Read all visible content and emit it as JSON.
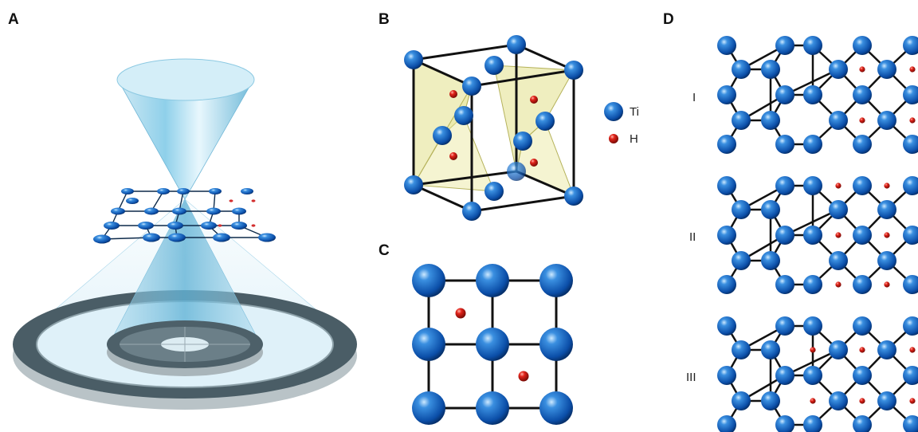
{
  "panels": {
    "a": {
      "label": "A"
    },
    "b": {
      "label": "B"
    },
    "c": {
      "label": "C"
    },
    "d": {
      "label": "D",
      "rows": [
        "I",
        "II",
        "III"
      ]
    }
  },
  "legend": [
    {
      "symbol": "Ti",
      "color": "#1565c0"
    },
    {
      "symbol": "H",
      "color": "#d32f2f"
    }
  ],
  "colors": {
    "ti": "#1565c0",
    "h": "#d32f2f",
    "cone": "#7fc6e6",
    "detector": "#4a5d66",
    "polyhedron": "#e2e08a"
  }
}
